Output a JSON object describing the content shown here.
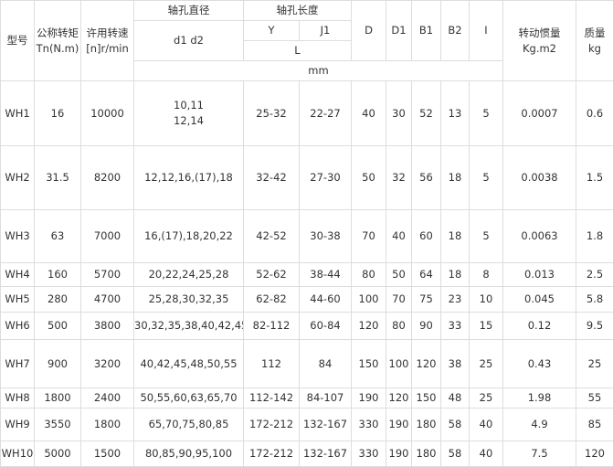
{
  "headers": {
    "model": "型号",
    "torque": "公称转矩",
    "torque_unit": "Tn(N.m)",
    "speed": "许用转速",
    "speed_unit": "[n]r/min",
    "bore_dia": "轴孔直径",
    "bore_dia_sub": "d1 d2",
    "bore_len": "轴孔长度",
    "y": "Y",
    "j1": "J1",
    "l": "L",
    "mm": "mm",
    "D": "D",
    "D1": "D1",
    "B1": "B1",
    "B2": "B2",
    "I": "I",
    "inertia": "转动惯量",
    "inertia_unit": "Kg.m2",
    "mass": "质量",
    "mass_unit": "kg"
  },
  "rows": [
    [
      "WH1",
      "16",
      "10000",
      "10,11\n12,14",
      "25-32",
      "22-27",
      "40",
      "30",
      "52",
      "13",
      "5",
      "0.0007",
      "0.6"
    ],
    [
      "WH2",
      "31.5",
      "8200",
      "12,12,16,(17),18",
      "32-42",
      "27-30",
      "50",
      "32",
      "56",
      "18",
      "5",
      "0.0038",
      "1.5"
    ],
    [
      "WH3",
      "63",
      "7000",
      "16,(17),18,20,22",
      "42-52",
      "30-38",
      "70",
      "40",
      "60",
      "18",
      "5",
      "0.0063",
      "1.8"
    ],
    [
      "WH4",
      "160",
      "5700",
      "20,22,24,25,28",
      "52-62",
      "38-44",
      "80",
      "50",
      "64",
      "18",
      "8",
      "0.013",
      "2.5"
    ],
    [
      "WH5",
      "280",
      "4700",
      "25,28,30,32,35",
      "62-82",
      "44-60",
      "100",
      "70",
      "75",
      "23",
      "10",
      "0.045",
      "5.8"
    ],
    [
      "WH6",
      "500",
      "3800",
      "30,32,35,38,40,42,45",
      "82-112",
      "60-84",
      "120",
      "80",
      "90",
      "33",
      "15",
      "0.12",
      "9.5"
    ],
    [
      "WH7",
      "900",
      "3200",
      "40,42,45,48,50,55",
      "112",
      "84",
      "150",
      "100",
      "120",
      "38",
      "25",
      "0.43",
      "25"
    ],
    [
      "WH8",
      "1800",
      "2400",
      "50,55,60,63,65,70",
      "112-142",
      "84-107",
      "190",
      "120",
      "150",
      "48",
      "25",
      "1.98",
      "55"
    ],
    [
      "WH9",
      "3550",
      "1800",
      "65,70,75,80,85",
      "172-212",
      "132-167",
      "330",
      "190",
      "180",
      "58",
      "40",
      "4.9",
      "85"
    ],
    [
      "WH10",
      "5000",
      "1500",
      "80,85,90,95,100",
      "172-212",
      "132-167",
      "330",
      "190",
      "180",
      "58",
      "40",
      "7.5",
      "120"
    ]
  ]
}
